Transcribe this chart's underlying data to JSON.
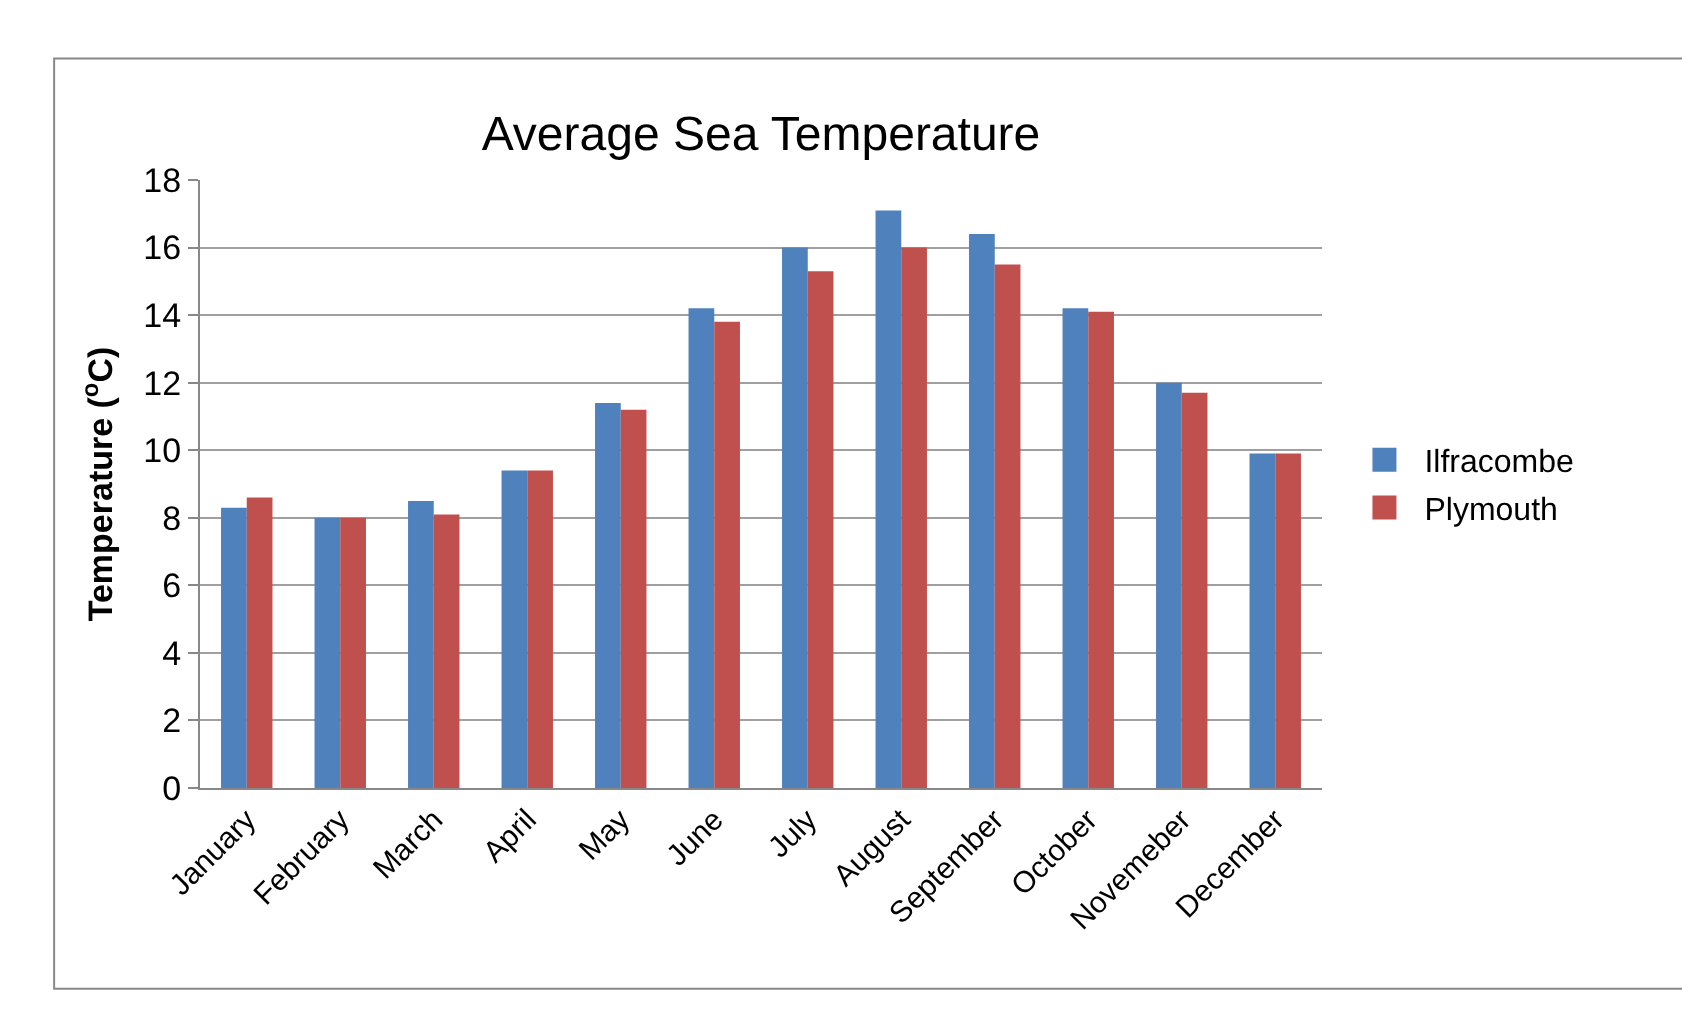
{
  "chart_data": {
    "type": "bar",
    "title": "Average Sea Temperature",
    "ylabel": "Temperature ($^{o}$C)",
    "categories": [
      "January",
      "February",
      "March",
      "April",
      "May",
      "June",
      "July",
      "August",
      "September",
      "October",
      "Novemeber",
      "December"
    ],
    "series": [
      {
        "name": "Ilfracombe",
        "color": "#4f81bd",
        "values": [
          8.3,
          8.0,
          8.5,
          9.4,
          11.4,
          14.2,
          16.0,
          17.1,
          16.4,
          14.2,
          12.0,
          9.9
        ]
      },
      {
        "name": "Plymouth",
        "color": "#c0504d",
        "values": [
          8.6,
          8.0,
          8.1,
          9.4,
          11.2,
          13.8,
          15.3,
          16.0,
          15.5,
          14.1,
          11.7,
          9.9
        ]
      }
    ],
    "ylim": [
      0,
      18
    ],
    "yticks": [
      0,
      2,
      4,
      6,
      8,
      10,
      12,
      14,
      16,
      18
    ],
    "grid": "y",
    "legend": "right"
  }
}
